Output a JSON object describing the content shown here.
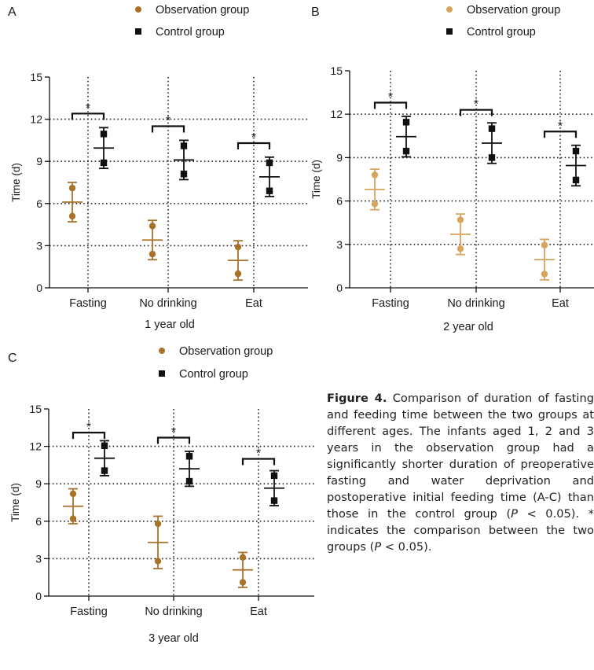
{
  "chart_data": [
    {
      "panel": "A",
      "type": "scatter",
      "subtitle": "1 year old",
      "ylabel": "Time (d)",
      "ylim": [
        0,
        15
      ],
      "yticks": [
        "0",
        "3",
        "6",
        "9",
        "12",
        "15"
      ],
      "categories": [
        "Fasting",
        "No drinking",
        "Eat"
      ],
      "legend": [
        "Observation group",
        "Control group"
      ],
      "colors": {
        "observation": "#a8722a",
        "control": "#111111"
      },
      "series": [
        {
          "name": "Observation group",
          "marker": "circle",
          "mean": [
            6.1,
            3.4,
            1.95
          ],
          "error": [
            1.4,
            1.4,
            1.4
          ],
          "points": [
            [
              7.1,
              5.1
            ],
            [
              4.4,
              2.4
            ],
            [
              2.9,
              1.0
            ]
          ]
        },
        {
          "name": "Control group",
          "marker": "square",
          "mean": [
            9.95,
            9.1,
            7.9
          ],
          "error": [
            1.45,
            1.4,
            1.4
          ],
          "points": [
            [
              10.95,
              8.9
            ],
            [
              10.1,
              8.1
            ],
            [
              8.9,
              6.9
            ]
          ]
        }
      ],
      "significance": [
        "*",
        "*",
        "*"
      ],
      "bracket_y": [
        12.4,
        11.5,
        10.3
      ]
    },
    {
      "panel": "B",
      "type": "scatter",
      "subtitle": "2 year old",
      "ylabel": "Time (d)",
      "ylim": [
        0,
        15
      ],
      "yticks": [
        "0",
        "3",
        "6",
        "9",
        "12",
        "15"
      ],
      "categories": [
        "Fasting",
        "No drinking",
        "Eat"
      ],
      "legend": [
        "Observation group",
        "Control group"
      ],
      "colors": {
        "observation": "#d7a55d",
        "control": "#111111"
      },
      "series": [
        {
          "name": "Observation group",
          "marker": "circle",
          "mean": [
            6.8,
            3.7,
            1.95
          ],
          "error": [
            1.4,
            1.4,
            1.4
          ],
          "points": [
            [
              7.8,
              5.8
            ],
            [
              4.7,
              2.7
            ],
            [
              2.95,
              0.95
            ]
          ]
        },
        {
          "name": "Control group",
          "marker": "square",
          "mean": [
            10.45,
            10.0,
            8.45
          ],
          "error": [
            1.4,
            1.4,
            1.4
          ],
          "points": [
            [
              11.45,
              9.45
            ],
            [
              11.0,
              9.0
            ],
            [
              9.45,
              7.45
            ]
          ]
        }
      ],
      "significance": [
        "*",
        "*",
        "*"
      ],
      "bracket_y": [
        12.8,
        12.3,
        10.8
      ]
    },
    {
      "panel": "C",
      "type": "scatter",
      "subtitle": "3 year old",
      "ylabel": "Time (d)",
      "ylim": [
        0,
        15
      ],
      "yticks": [
        "0",
        "3",
        "6",
        "9",
        "12",
        "15"
      ],
      "categories": [
        "Fasting",
        "No drinking",
        "Eat"
      ],
      "legend": [
        "Observation group",
        "Control group"
      ],
      "colors": {
        "observation": "#a8722a",
        "control": "#111111"
      },
      "series": [
        {
          "name": "Observation group",
          "marker": "circle",
          "mean": [
            7.2,
            4.3,
            2.1
          ],
          "error": [
            1.4,
            2.1,
            1.4
          ],
          "points": [
            [
              8.2,
              6.2
            ],
            [
              5.8,
              2.8
            ],
            [
              3.1,
              1.1
            ]
          ]
        },
        {
          "name": "Control group",
          "marker": "square",
          "mean": [
            11.05,
            10.2,
            8.65
          ],
          "error": [
            1.4,
            1.4,
            1.4
          ],
          "points": [
            [
              12.05,
              10.05
            ],
            [
              11.2,
              9.2
            ],
            [
              9.65,
              7.65
            ]
          ]
        }
      ],
      "significance": [
        "*",
        "*",
        "*"
      ],
      "bracket_y": [
        13.1,
        12.7,
        11.0
      ]
    }
  ],
  "caption": {
    "label": "Figure 4.",
    "text_1": " Comparison of duration of fasting and feeding time between the two groups at different ages. The infants aged 1, 2 and 3 years in the observation group had a significantly shorter duration of preoperative fasting and water deprivation and postoperative initial feeding time (A-C) than those in the control group (",
    "p1": "P",
    "text_2": " < 0.05). * indicates the comparison between the two groups (",
    "p2": "P",
    "text_3": " < 0.05)."
  }
}
